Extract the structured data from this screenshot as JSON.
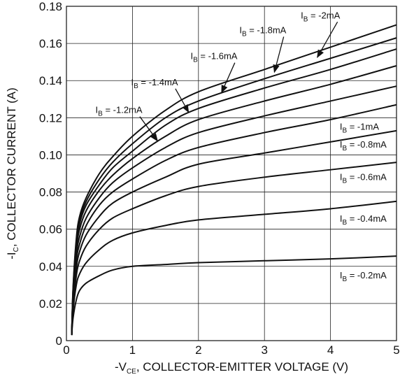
{
  "chart_data": {
    "type": "line",
    "title": "",
    "xlabel": {
      "prefix": "-V",
      "sub": "CE",
      "suffix": ", COLLECTOR-EMITTER VOLTAGE (V)"
    },
    "ylabel": {
      "prefix": "-I",
      "sub": "C",
      "suffix": ", COLLECTOR CURRENT (A)"
    },
    "xlim": [
      0,
      5
    ],
    "ylim": [
      0,
      0.18
    ],
    "xticks": [
      "0",
      "1",
      "2",
      "3",
      "4",
      "5"
    ],
    "yticks": [
      "0",
      "0.02",
      "0.04",
      "0.06",
      "0.08",
      "0.10",
      "0.12",
      "0.14",
      "0.16",
      "0.18"
    ],
    "grid": true,
    "series": [
      {
        "name": {
          "prefix": "I",
          "sub": "B",
          "suffix": " = -0.2mA"
        },
        "x": [
          0.08,
          0.1,
          0.15,
          0.2,
          0.3,
          0.5,
          0.7,
          1.0,
          1.5,
          2.0,
          3.0,
          4.0,
          5.0
        ],
        "y": [
          0.003,
          0.012,
          0.022,
          0.027,
          0.031,
          0.035,
          0.038,
          0.04,
          0.041,
          0.042,
          0.043,
          0.044,
          0.0455
        ]
      },
      {
        "name": {
          "prefix": "I",
          "sub": "B",
          "suffix": " = -0.4mA"
        },
        "x": [
          0.08,
          0.1,
          0.15,
          0.2,
          0.3,
          0.5,
          0.7,
          1.0,
          1.5,
          2.0,
          3.0,
          4.0,
          5.0
        ],
        "y": [
          0.003,
          0.016,
          0.03,
          0.036,
          0.042,
          0.049,
          0.054,
          0.058,
          0.062,
          0.065,
          0.068,
          0.071,
          0.075
        ]
      },
      {
        "name": {
          "prefix": "I",
          "sub": "B",
          "suffix": " = -0.6mA"
        },
        "x": [
          0.08,
          0.1,
          0.15,
          0.2,
          0.3,
          0.5,
          0.7,
          1.0,
          1.5,
          2.0,
          3.0,
          4.0,
          5.0
        ],
        "y": [
          0.003,
          0.018,
          0.035,
          0.043,
          0.051,
          0.06,
          0.066,
          0.071,
          0.078,
          0.083,
          0.088,
          0.092,
          0.096
        ]
      },
      {
        "name": {
          "prefix": "I",
          "sub": "B",
          "suffix": " = -0.8mA"
        },
        "x": [
          0.08,
          0.1,
          0.15,
          0.2,
          0.3,
          0.5,
          0.7,
          1.0,
          1.5,
          2.0,
          3.0,
          4.0,
          5.0
        ],
        "y": [
          0.003,
          0.02,
          0.039,
          0.048,
          0.057,
          0.067,
          0.074,
          0.08,
          0.088,
          0.095,
          0.101,
          0.107,
          0.113
        ]
      },
      {
        "name": {
          "prefix": "I",
          "sub": "B",
          "suffix": " = -1mA"
        },
        "x": [
          0.08,
          0.1,
          0.15,
          0.2,
          0.3,
          0.5,
          0.7,
          1.0,
          1.5,
          2.0,
          3.0,
          4.0,
          5.0
        ],
        "y": [
          0.003,
          0.022,
          0.043,
          0.052,
          0.062,
          0.073,
          0.08,
          0.087,
          0.097,
          0.104,
          0.112,
          0.119,
          0.127
        ]
      },
      {
        "name": {
          "prefix": "I",
          "sub": "B",
          "suffix": " = -1.2mA"
        },
        "x": [
          0.08,
          0.1,
          0.15,
          0.2,
          0.3,
          0.5,
          0.7,
          1.0,
          1.5,
          2.0,
          3.0,
          4.0,
          5.0
        ],
        "y": [
          0.003,
          0.024,
          0.046,
          0.056,
          0.066,
          0.077,
          0.085,
          0.093,
          0.104,
          0.112,
          0.121,
          0.129,
          0.137
        ]
      },
      {
        "name": {
          "prefix": "I",
          "sub": "B",
          "suffix": " = -1.4mA"
        },
        "x": [
          0.08,
          0.1,
          0.15,
          0.2,
          0.3,
          0.5,
          0.7,
          1.0,
          1.5,
          2.0,
          3.0,
          4.0,
          5.0
        ],
        "y": [
          0.003,
          0.025,
          0.049,
          0.06,
          0.07,
          0.081,
          0.089,
          0.098,
          0.11,
          0.119,
          0.129,
          0.138,
          0.148
        ]
      },
      {
        "name": {
          "prefix": "I",
          "sub": "B",
          "suffix": " = -1.6mA"
        },
        "x": [
          0.08,
          0.1,
          0.15,
          0.2,
          0.3,
          0.5,
          0.7,
          1.0,
          1.5,
          2.0,
          3.0,
          4.0,
          5.0
        ],
        "y": [
          0.003,
          0.026,
          0.051,
          0.063,
          0.073,
          0.084,
          0.093,
          0.102,
          0.116,
          0.125,
          0.136,
          0.146,
          0.157
        ]
      },
      {
        "name": {
          "prefix": "I",
          "sub": "B",
          "suffix": " = -1.8mA"
        },
        "x": [
          0.08,
          0.1,
          0.15,
          0.2,
          0.3,
          0.5,
          0.7,
          1.0,
          1.5,
          2.0,
          3.0,
          4.0,
          5.0
        ],
        "y": [
          0.003,
          0.027,
          0.053,
          0.065,
          0.075,
          0.087,
          0.096,
          0.106,
          0.12,
          0.129,
          0.141,
          0.152,
          0.163
        ]
      },
      {
        "name": {
          "prefix": "I",
          "sub": "B",
          "suffix": " = -2mA"
        },
        "x": [
          0.08,
          0.1,
          0.15,
          0.2,
          0.3,
          0.5,
          0.7,
          1.0,
          1.5,
          2.0,
          3.0,
          4.0,
          5.0
        ],
        "y": [
          0.003,
          0.028,
          0.055,
          0.067,
          0.077,
          0.09,
          0.099,
          0.11,
          0.124,
          0.134,
          0.146,
          0.158,
          0.17
        ]
      }
    ],
    "annotations": [
      {
        "series": 9,
        "label_pos": [
          3.55,
          0.1735
        ],
        "arrow_to": [
          3.8,
          0.1525
        ]
      },
      {
        "series": 8,
        "label_pos": [
          2.62,
          0.1655
        ],
        "arrow_to": [
          3.15,
          0.1445
        ]
      },
      {
        "series": 7,
        "label_pos": [
          1.88,
          0.1515
        ],
        "arrow_to": [
          2.35,
          0.1335
        ]
      },
      {
        "series": 6,
        "label_pos": [
          0.98,
          0.1375
        ],
        "arrow_to": [
          1.85,
          0.123
        ]
      },
      {
        "series": 5,
        "label_pos": [
          0.44,
          0.1225
        ],
        "arrow_to": [
          1.38,
          0.1075
        ]
      }
    ],
    "right_labels": [
      {
        "series": 4,
        "label_pos": [
          4.14,
          0.1135
        ]
      },
      {
        "series": 3,
        "label_pos": [
          4.14,
          0.104
        ]
      },
      {
        "series": 2,
        "label_pos": [
          4.14,
          0.0865
        ]
      },
      {
        "series": 1,
        "label_pos": [
          4.14,
          0.064
        ]
      },
      {
        "series": 0,
        "label_pos": [
          4.14,
          0.0335
        ]
      }
    ]
  }
}
